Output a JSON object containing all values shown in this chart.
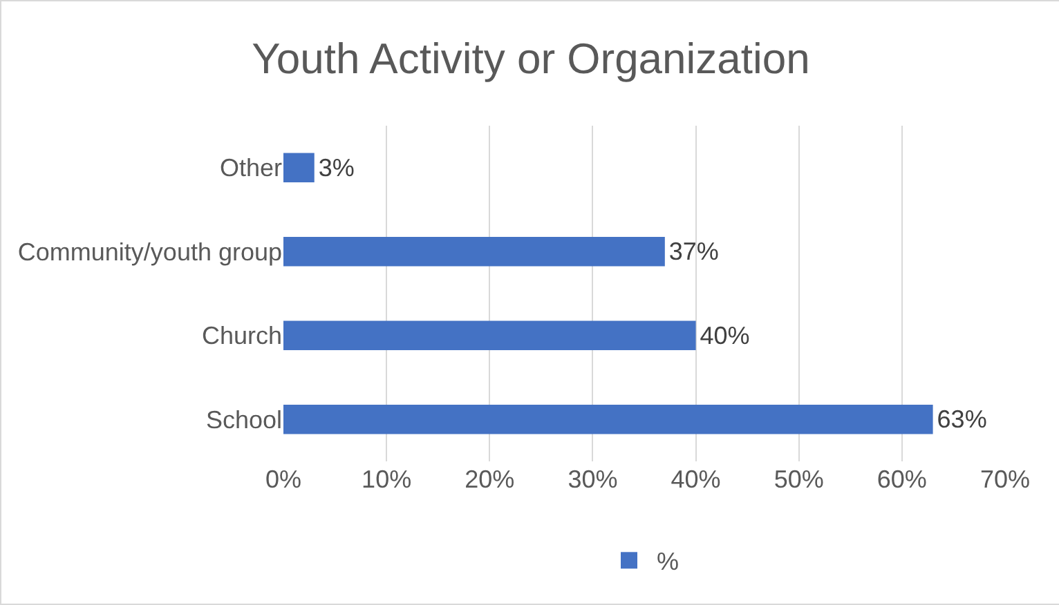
{
  "chart_data": {
    "type": "bar",
    "orientation": "horizontal",
    "title": "Youth Activity or Organization",
    "categories": [
      "Other",
      "Community/youth group",
      "Church",
      "School"
    ],
    "series": [
      {
        "name": "%",
        "color": "#4472c4",
        "values": [
          3,
          37,
          40,
          63
        ],
        "value_labels": [
          "3%",
          "37%",
          "40%",
          "63%"
        ]
      }
    ],
    "xlim": [
      0,
      70
    ],
    "xticks": [
      {
        "value": 0,
        "label": "0%"
      },
      {
        "value": 10,
        "label": "10%"
      },
      {
        "value": 20,
        "label": "20%"
      },
      {
        "value": 30,
        "label": "30%"
      },
      {
        "value": 40,
        "label": "40%"
      },
      {
        "value": 50,
        "label": "50%"
      },
      {
        "value": 60,
        "label": "60%"
      },
      {
        "value": 70,
        "label": "70%"
      }
    ],
    "grid": "x",
    "legend": "bottom"
  }
}
